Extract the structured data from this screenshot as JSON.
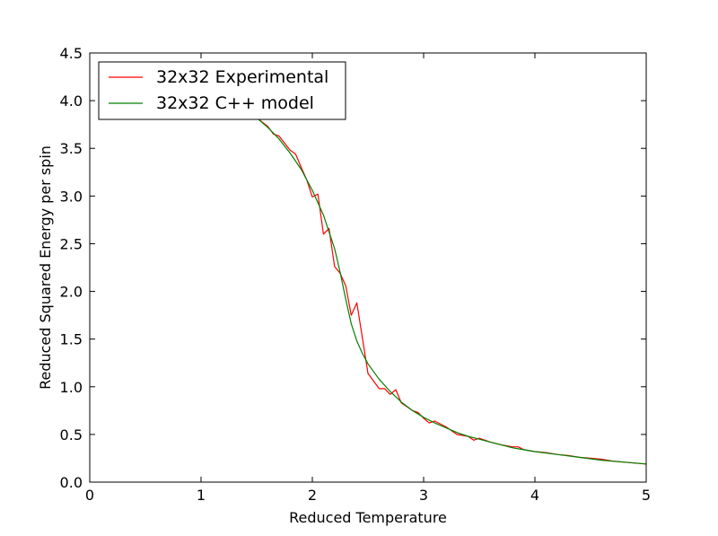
{
  "chart_data": {
    "type": "line",
    "title": "",
    "xlabel": "Reduced Temperature",
    "ylabel": "Reduced Squared Energy per spin",
    "xlim": [
      0,
      5
    ],
    "ylim": [
      0,
      4.5
    ],
    "x_ticks": [
      0,
      1,
      2,
      3,
      4,
      5
    ],
    "y_ticks": [
      0.0,
      0.5,
      1.0,
      1.5,
      2.0,
      2.5,
      3.0,
      3.5,
      4.0,
      4.5
    ],
    "x_tick_labels": [
      "0",
      "1",
      "2",
      "3",
      "4",
      "5"
    ],
    "y_tick_labels": [
      "0.0",
      "0.5",
      "1.0",
      "1.5",
      "2.0",
      "2.5",
      "3.0",
      "3.5",
      "4.0",
      "4.5"
    ],
    "grid": false,
    "legend_position": "top-left",
    "series": [
      {
        "name": "32x32 Experimental",
        "color": "#ff0000",
        "x": [
          0.5,
          0.7,
          0.9,
          1.1,
          1.3,
          1.5,
          1.6,
          1.65,
          1.7,
          1.8,
          1.85,
          1.9,
          1.95,
          2.0,
          2.05,
          2.1,
          2.15,
          2.2,
          2.25,
          2.3,
          2.35,
          2.4,
          2.5,
          2.6,
          2.65,
          2.7,
          2.75,
          2.8,
          2.9,
          2.95,
          3.0,
          3.05,
          3.1,
          3.2,
          3.3,
          3.4,
          3.45,
          3.5,
          3.6,
          3.7,
          3.8,
          3.85,
          3.9,
          4.0,
          4.1,
          4.2,
          4.3,
          4.4,
          4.5,
          4.6,
          4.7,
          4.8,
          4.9,
          5.0
        ],
        "y": [
          4.0,
          4.0,
          3.99,
          3.97,
          3.92,
          3.82,
          3.73,
          3.65,
          3.63,
          3.48,
          3.44,
          3.3,
          3.17,
          2.99,
          3.02,
          2.6,
          2.66,
          2.26,
          2.19,
          2.06,
          1.75,
          1.88,
          1.14,
          0.98,
          0.98,
          0.92,
          0.97,
          0.83,
          0.75,
          0.73,
          0.67,
          0.62,
          0.64,
          0.58,
          0.5,
          0.48,
          0.44,
          0.46,
          0.42,
          0.39,
          0.37,
          0.37,
          0.34,
          0.32,
          0.31,
          0.29,
          0.28,
          0.26,
          0.25,
          0.24,
          0.22,
          0.21,
          0.2,
          0.19
        ]
      },
      {
        "name": "32x32 C++ model",
        "color": "#008000",
        "x": [
          0.5,
          0.7,
          0.9,
          1.1,
          1.3,
          1.5,
          1.6,
          1.7,
          1.8,
          1.9,
          2.0,
          2.1,
          2.2,
          2.25,
          2.3,
          2.35,
          2.4,
          2.45,
          2.5,
          2.6,
          2.7,
          2.8,
          2.9,
          3.0,
          3.1,
          3.2,
          3.3,
          3.4,
          3.5,
          3.6,
          3.7,
          3.8,
          3.9,
          4.0,
          4.2,
          4.4,
          4.6,
          4.8,
          5.0
        ],
        "y": [
          4.0,
          4.0,
          3.99,
          3.97,
          3.92,
          3.82,
          3.72,
          3.6,
          3.45,
          3.28,
          3.06,
          2.8,
          2.45,
          2.2,
          1.92,
          1.66,
          1.48,
          1.35,
          1.24,
          1.08,
          0.95,
          0.84,
          0.75,
          0.68,
          0.62,
          0.57,
          0.52,
          0.48,
          0.45,
          0.42,
          0.39,
          0.36,
          0.34,
          0.32,
          0.29,
          0.26,
          0.23,
          0.21,
          0.19
        ]
      }
    ]
  }
}
